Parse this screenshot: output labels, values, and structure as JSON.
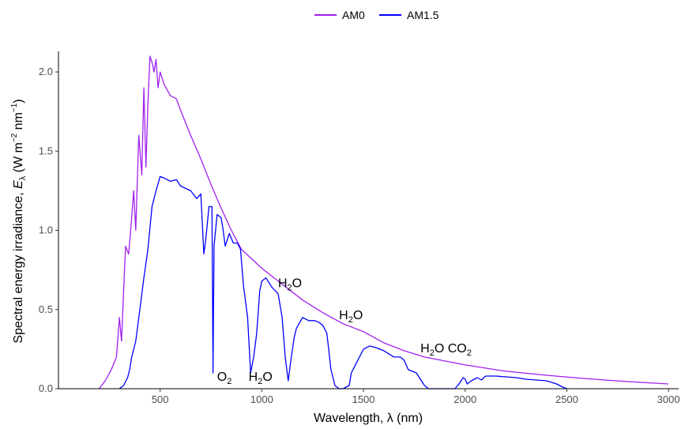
{
  "chart_data": {
    "type": "line",
    "xlabel_parts": [
      "Wavelength, ",
      "λ",
      " (nm)"
    ],
    "ylabel_parts": [
      "Spectral energy irradiance, ",
      "E",
      "λ",
      " (W m",
      "−2",
      " nm",
      "−1",
      ")"
    ],
    "xlim": [
      0,
      3050
    ],
    "ylim": [
      0,
      2.13
    ],
    "x_ticks": [
      500,
      1000,
      1500,
      2000,
      2500,
      3000
    ],
    "y_ticks": [
      0.0,
      0.5,
      1.0,
      1.5,
      2.0
    ],
    "x_tick_labels": [
      "500",
      "1000",
      "1500",
      "2000",
      "2500",
      "3000"
    ],
    "y_tick_labels": [
      "0.0",
      "0.5",
      "1.0",
      "1.5",
      "2.0"
    ],
    "grid": false,
    "legend_position": "top",
    "series": [
      {
        "name": "AM0",
        "color": "#a020f0",
        "points": [
          [
            200,
            0.0
          ],
          [
            230,
            0.05
          ],
          [
            260,
            0.12
          ],
          [
            285,
            0.2
          ],
          [
            300,
            0.45
          ],
          [
            310,
            0.3
          ],
          [
            330,
            0.9
          ],
          [
            345,
            0.85
          ],
          [
            355,
            1.0
          ],
          [
            370,
            1.25
          ],
          [
            380,
            1.0
          ],
          [
            395,
            1.6
          ],
          [
            410,
            1.35
          ],
          [
            420,
            1.9
          ],
          [
            430,
            1.4
          ],
          [
            440,
            1.8
          ],
          [
            450,
            2.1
          ],
          [
            460,
            2.06
          ],
          [
            470,
            2.0
          ],
          [
            480,
            2.08
          ],
          [
            490,
            1.9
          ],
          [
            500,
            2.0
          ],
          [
            520,
            1.92
          ],
          [
            550,
            1.85
          ],
          [
            580,
            1.83
          ],
          [
            600,
            1.76
          ],
          [
            650,
            1.6
          ],
          [
            700,
            1.45
          ],
          [
            750,
            1.29
          ],
          [
            800,
            1.14
          ],
          [
            850,
            1.0
          ],
          [
            900,
            0.88
          ],
          [
            950,
            0.82
          ],
          [
            1000,
            0.76
          ],
          [
            1100,
            0.66
          ],
          [
            1200,
            0.56
          ],
          [
            1300,
            0.48
          ],
          [
            1400,
            0.41
          ],
          [
            1500,
            0.36
          ],
          [
            1600,
            0.29
          ],
          [
            1700,
            0.24
          ],
          [
            1800,
            0.2
          ],
          [
            2000,
            0.15
          ],
          [
            2200,
            0.11
          ],
          [
            2400,
            0.085
          ],
          [
            2600,
            0.063
          ],
          [
            2800,
            0.045
          ],
          [
            3000,
            0.03
          ]
        ]
      },
      {
        "name": "AM1.5",
        "color": "#0000ff",
        "points": [
          [
            300,
            0.0
          ],
          [
            320,
            0.02
          ],
          [
            340,
            0.07
          ],
          [
            350,
            0.12
          ],
          [
            360,
            0.2
          ],
          [
            380,
            0.3
          ],
          [
            400,
            0.5
          ],
          [
            420,
            0.7
          ],
          [
            440,
            0.88
          ],
          [
            460,
            1.15
          ],
          [
            480,
            1.25
          ],
          [
            500,
            1.34
          ],
          [
            520,
            1.33
          ],
          [
            550,
            1.31
          ],
          [
            580,
            1.32
          ],
          [
            600,
            1.28
          ],
          [
            650,
            1.25
          ],
          [
            680,
            1.2
          ],
          [
            700,
            1.23
          ],
          [
            715,
            0.85
          ],
          [
            725,
            0.95
          ],
          [
            740,
            1.15
          ],
          [
            755,
            1.15
          ],
          [
            760,
            0.1
          ],
          [
            765,
            0.9
          ],
          [
            780,
            1.1
          ],
          [
            800,
            1.08
          ],
          [
            810,
            1.0
          ],
          [
            820,
            0.9
          ],
          [
            840,
            0.98
          ],
          [
            860,
            0.92
          ],
          [
            880,
            0.92
          ],
          [
            895,
            0.88
          ],
          [
            910,
            0.65
          ],
          [
            930,
            0.45
          ],
          [
            945,
            0.1
          ],
          [
            960,
            0.2
          ],
          [
            975,
            0.35
          ],
          [
            990,
            0.62
          ],
          [
            1000,
            0.68
          ],
          [
            1020,
            0.7
          ],
          [
            1050,
            0.64
          ],
          [
            1080,
            0.6
          ],
          [
            1100,
            0.45
          ],
          [
            1115,
            0.2
          ],
          [
            1130,
            0.05
          ],
          [
            1145,
            0.2
          ],
          [
            1160,
            0.33
          ],
          [
            1170,
            0.38
          ],
          [
            1200,
            0.45
          ],
          [
            1230,
            0.43
          ],
          [
            1260,
            0.43
          ],
          [
            1280,
            0.42
          ],
          [
            1300,
            0.4
          ],
          [
            1320,
            0.35
          ],
          [
            1340,
            0.12
          ],
          [
            1360,
            0.02
          ],
          [
            1380,
            0.0
          ],
          [
            1400,
            0.0
          ],
          [
            1430,
            0.02
          ],
          [
            1440,
            0.1
          ],
          [
            1460,
            0.15
          ],
          [
            1480,
            0.2
          ],
          [
            1500,
            0.25
          ],
          [
            1530,
            0.27
          ],
          [
            1560,
            0.26
          ],
          [
            1600,
            0.24
          ],
          [
            1650,
            0.2
          ],
          [
            1680,
            0.2
          ],
          [
            1700,
            0.18
          ],
          [
            1720,
            0.12
          ],
          [
            1760,
            0.1
          ],
          [
            1780,
            0.06
          ],
          [
            1800,
            0.02
          ],
          [
            1820,
            0.0
          ],
          [
            1950,
            0.0
          ],
          [
            1970,
            0.03
          ],
          [
            1990,
            0.07
          ],
          [
            2000,
            0.06
          ],
          [
            2010,
            0.03
          ],
          [
            2030,
            0.05
          ],
          [
            2060,
            0.07
          ],
          [
            2080,
            0.055
          ],
          [
            2100,
            0.08
          ],
          [
            2150,
            0.08
          ],
          [
            2200,
            0.075
          ],
          [
            2250,
            0.07
          ],
          [
            2300,
            0.06
          ],
          [
            2350,
            0.055
          ],
          [
            2400,
            0.05
          ],
          [
            2450,
            0.03
          ],
          [
            2480,
            0.01
          ],
          [
            2500,
            0.0
          ]
        ]
      }
    ],
    "annotations": [
      {
        "x": 780,
        "y": 0.05,
        "main": "O",
        "sub": "2",
        "tail": ""
      },
      {
        "x": 935,
        "y": 0.05,
        "main": "H",
        "sub": "2",
        "tail": "O"
      },
      {
        "x": 1080,
        "y": 0.64,
        "main": "H",
        "sub": "2",
        "tail": "O"
      },
      {
        "x": 1380,
        "y": 0.44,
        "main": "H",
        "sub": "2",
        "tail": "O"
      },
      {
        "x": 1780,
        "y": 0.23,
        "main": "H",
        "sub": "2",
        "tail": "O CO",
        "sub2": "2"
      }
    ]
  }
}
